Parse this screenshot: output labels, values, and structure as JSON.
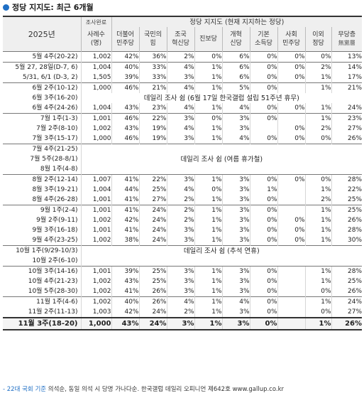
{
  "title": "정당 지지도: 최근 6개월",
  "header": {
    "period": "2025년",
    "survey_top": "조사완료",
    "survey_bottom": "사례수\n(명)",
    "group": "정당 지지도 (현재 지지하는 정당)",
    "parties": [
      "더불어\n민주당",
      "국민의\n힘",
      "조국\n혁신당",
      "진보당",
      "개혁\n신당",
      "기본\n소득당",
      "사회\n민주당",
      "이외\n정당"
    ],
    "none": "무당층",
    "none_sub": "無黨層"
  },
  "rows": [
    {
      "p": "5월 4주(20-22)",
      "n": "1,002",
      "v": [
        "42%",
        "36%",
        "2%",
        "0%",
        "6%",
        "0%",
        "0%",
        "0%",
        "13%"
      ],
      "g": true
    },
    {
      "p": "5월 27, 28일(D-7, 6)",
      "n": "1,004",
      "v": [
        "40%",
        "33%",
        "4%",
        "1%",
        "6%",
        "0%",
        "0%",
        "2%",
        "14%"
      ],
      "g": true
    },
    {
      "p": "5/31, 6/1 (D-3, 2)",
      "n": "1,505",
      "v": [
        "39%",
        "33%",
        "3%",
        "1%",
        "6%",
        "0%",
        "0%",
        "1%",
        "17%"
      ]
    },
    {
      "p": "6월 2주(10-12)",
      "n": "1,000",
      "v": [
        "46%",
        "21%",
        "4%",
        "1%",
        "5%",
        "0%",
        "",
        "1%",
        "21%"
      ],
      "g": true
    },
    {
      "p": "6월 3주(16-20)",
      "note": "데일리 조사 쉼 (6월 17일 한국갤럽 설립 51주년 휴무)"
    },
    {
      "p": "6월 4주(24-26)",
      "n": "1,004",
      "v": [
        "43%",
        "23%",
        "4%",
        "1%",
        "4%",
        "0%",
        "0%",
        "1%",
        "24%"
      ]
    },
    {
      "p": "7월 1주(1-3)",
      "n": "1,001",
      "v": [
        "46%",
        "22%",
        "3%",
        "0%",
        "3%",
        "0%",
        "",
        "1%",
        "23%"
      ],
      "g": true
    },
    {
      "p": "7월 2주(8-10)",
      "n": "1,002",
      "v": [
        "43%",
        "19%",
        "4%",
        "1%",
        "3%",
        "",
        "0%",
        "2%",
        "27%"
      ]
    },
    {
      "p": "7월 3주(15-17)",
      "n": "1,000",
      "v": [
        "46%",
        "19%",
        "3%",
        "1%",
        "4%",
        "0%",
        "0%",
        "0%",
        "26%"
      ]
    },
    {
      "p": "7월 4주(21-25)",
      "g": true
    },
    {
      "p": "7월 5주(28-8/1)",
      "note": "데일리 조사 쉼 (여름 휴가철)"
    },
    {
      "p": "8월 1주(4-8)"
    },
    {
      "p": "8월 2주(12-14)",
      "n": "1,007",
      "v": [
        "41%",
        "22%",
        "3%",
        "1%",
        "3%",
        "0%",
        "0%",
        "0%",
        "28%"
      ],
      "g": true
    },
    {
      "p": "8월 3주(19-21)",
      "n": "1,004",
      "v": [
        "44%",
        "25%",
        "4%",
        "0%",
        "3%",
        "1%",
        "",
        "1%",
        "22%"
      ]
    },
    {
      "p": "8월 4주(26-28)",
      "n": "1,001",
      "v": [
        "41%",
        "27%",
        "2%",
        "1%",
        "3%",
        "0%",
        "",
        "2%",
        "25%"
      ]
    },
    {
      "p": "9월 1주(2-4)",
      "n": "1,001",
      "v": [
        "41%",
        "24%",
        "2%",
        "1%",
        "3%",
        "0%",
        "",
        "1%",
        "25%"
      ],
      "g": true
    },
    {
      "p": "9월 2주(9-11)",
      "n": "1,002",
      "v": [
        "42%",
        "24%",
        "2%",
        "1%",
        "3%",
        "0%",
        "0%",
        "1%",
        "26%"
      ]
    },
    {
      "p": "9월 3주(16-18)",
      "n": "1,001",
      "v": [
        "41%",
        "24%",
        "3%",
        "1%",
        "3%",
        "0%",
        "0%",
        "1%",
        "28%"
      ]
    },
    {
      "p": "9월 4주(23-25)",
      "n": "1,002",
      "v": [
        "38%",
        "24%",
        "3%",
        "1%",
        "3%",
        "0%",
        "0%",
        "1%",
        "30%"
      ]
    },
    {
      "p": "10월 1주(9/29-10/3)",
      "note": "데일리 조사 쉼 (추석 연휴)",
      "g": true
    },
    {
      "p": "10월 2주(6-10)"
    },
    {
      "p": "10월 3주(14-16)",
      "n": "1,001",
      "v": [
        "39%",
        "25%",
        "3%",
        "1%",
        "3%",
        "0%",
        "",
        "1%",
        "28%"
      ],
      "g": true
    },
    {
      "p": "10월 4주(21-23)",
      "n": "1,002",
      "v": [
        "43%",
        "25%",
        "3%",
        "1%",
        "3%",
        "0%",
        "",
        "1%",
        "25%"
      ]
    },
    {
      "p": "10월 5주(28-30)",
      "n": "1,002",
      "v": [
        "41%",
        "26%",
        "3%",
        "1%",
        "3%",
        "0%",
        "",
        "0%",
        "26%"
      ]
    },
    {
      "p": "11월 1주(4-6)",
      "n": "1,002",
      "v": [
        "40%",
        "26%",
        "4%",
        "1%",
        "4%",
        "0%",
        "",
        "1%",
        "24%"
      ],
      "g": true
    },
    {
      "p": "11월 2주(11-13)",
      "n": "1,003",
      "v": [
        "42%",
        "24%",
        "2%",
        "1%",
        "3%",
        "0%",
        "",
        "0%",
        "27%"
      ]
    },
    {
      "p": "11월 3주(18-20)",
      "n": "1,000",
      "v": [
        "43%",
        "24%",
        "3%",
        "1%",
        "3%",
        "0%",
        "",
        "1%",
        "26%"
      ],
      "last": true
    }
  ],
  "footer": {
    "lead": "- 22대 국회 기준",
    "text": " 의석순, 동일 의석 시 당명 가나다순. 한국갤럽 데일리 오피니언 제642호 www.gallup.co.kr"
  }
}
